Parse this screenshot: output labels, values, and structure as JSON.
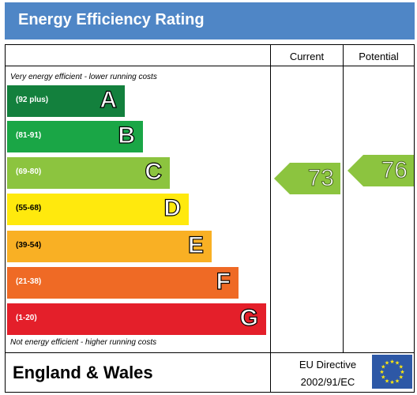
{
  "header": {
    "title": "Energy Efficiency Rating"
  },
  "columns": {
    "current": "Current",
    "potential": "Potential"
  },
  "notes": {
    "top": "Very energy efficient - lower running costs",
    "bottom": "Not energy efficient - higher running costs"
  },
  "chart_data": {
    "type": "bar",
    "title": "Energy Efficiency Rating",
    "bands": [
      {
        "letter": "A",
        "range": "(92 plus)",
        "color": "#13803d"
      },
      {
        "letter": "B",
        "range": "(81-91)",
        "color": "#1aa646"
      },
      {
        "letter": "C",
        "range": "(69-80)",
        "color": "#8cc43f"
      },
      {
        "letter": "D",
        "range": "(55-68)",
        "color": "#ffe90d"
      },
      {
        "letter": "E",
        "range": "(39-54)",
        "color": "#f9b024"
      },
      {
        "letter": "F",
        "range": "(21-38)",
        "color": "#ef6a25"
      },
      {
        "letter": "G",
        "range": "(1-20)",
        "color": "#e41f2a"
      }
    ],
    "current": {
      "value": 73,
      "band": "C"
    },
    "potential": {
      "value": 76,
      "band": "C"
    }
  },
  "footer": {
    "region": "England & Wales",
    "directive_line1": "EU Directive",
    "directive_line2": "2002/91/EC"
  },
  "flag_icon": "eu-flag-icon"
}
